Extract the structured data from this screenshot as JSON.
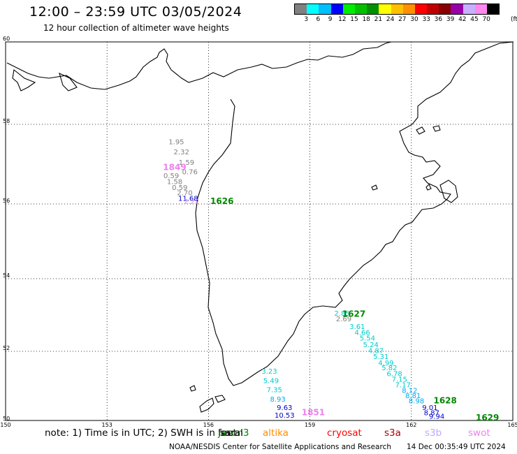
{
  "header": {
    "title": "12:00 – 23:59 UTC 03/05/2024",
    "subtitle": "12 hour collection of altimeter wave heights"
  },
  "legend": {
    "colors": [
      "#808080",
      "#00ffff",
      "#00bfff",
      "#0000ff",
      "#00ee00",
      "#00c000",
      "#009000",
      "#ffff00",
      "#ffc000",
      "#ff9000",
      "#ff0000",
      "#c00000",
      "#880000",
      "#9900aa",
      "#c8b0ff",
      "#ff88ee",
      "#000000"
    ],
    "labels": [
      "3",
      "6",
      "9",
      "12",
      "15",
      "18",
      "21",
      "24",
      "27",
      "30",
      "33",
      "36",
      "39",
      "42",
      "45",
      "70"
    ],
    "unit": "(ft)"
  },
  "map": {
    "lat_range": [
      50,
      60
    ],
    "lon_range": [
      150,
      165
    ],
    "lat_labels": [
      "60",
      "58",
      "56",
      "54",
      "52",
      "50"
    ],
    "lon_labels": [
      "150",
      "153",
      "156",
      "159",
      "162",
      "165"
    ]
  },
  "tracks": [
    {
      "name": "jason3",
      "time_label": "1849",
      "color": "#ee80ee",
      "time_lat": 56.85,
      "time_lon": 155.0,
      "points": [
        {
          "lat": 57.5,
          "lon": 155.05,
          "value": "1.95",
          "color": "#808080"
        },
        {
          "lat": 57.25,
          "lon": 155.2,
          "value": "2.32",
          "color": "#808080"
        },
        {
          "lat": 56.98,
          "lon": 155.35,
          "value": "1.59",
          "color": "#808080"
        },
        {
          "lat": 56.75,
          "lon": 155.45,
          "value": "0.76",
          "color": "#808080"
        },
        {
          "lat": 56.65,
          "lon": 154.9,
          "value": "0.59",
          "color": "#808080"
        },
        {
          "lat": 56.5,
          "lon": 155.0,
          "value": "1.58",
          "color": "#808080"
        },
        {
          "lat": 56.35,
          "lon": 155.15,
          "value": "0.59",
          "color": "#808080"
        },
        {
          "lat": 56.22,
          "lon": 155.3,
          "value": "2.70",
          "color": "#808080"
        },
        {
          "lat": 56.08,
          "lon": 155.4,
          "value": "11.68",
          "color": "#0000cc"
        },
        {
          "lat": 56.0,
          "lon": 155.5,
          "value": "2.22",
          "color": "#ee80ee"
        }
      ]
    },
    {
      "name": "saral",
      "time_label": "1626",
      "color": "#008800",
      "time_lat": 56.0,
      "time_lon": 156.4,
      "points": []
    },
    {
      "name": "sentinel3b",
      "time_label": "1627",
      "color": "#008800",
      "time_lat": 52.95,
      "time_lon": 160.3,
      "points": [
        {
          "lat": 52.98,
          "lon": 159.95,
          "value": "2.85",
          "color": "#00cccc"
        },
        {
          "lat": 52.83,
          "lon": 160.0,
          "value": "2.69",
          "color": "#808080"
        },
        {
          "lat": 52.62,
          "lon": 160.4,
          "value": "3.61",
          "color": "#00cccc"
        },
        {
          "lat": 52.45,
          "lon": 160.55,
          "value": "4.66",
          "color": "#00cccc"
        },
        {
          "lat": 52.3,
          "lon": 160.7,
          "value": "5.54",
          "color": "#00cccc"
        },
        {
          "lat": 52.12,
          "lon": 160.8,
          "value": "5.24",
          "color": "#00cccc"
        },
        {
          "lat": 51.95,
          "lon": 160.95,
          "value": "4.87",
          "color": "#00cccc"
        },
        {
          "lat": 51.78,
          "lon": 161.1,
          "value": "5.31",
          "color": "#00cccc"
        },
        {
          "lat": 51.6,
          "lon": 161.25,
          "value": "4.99",
          "color": "#00cccc"
        },
        {
          "lat": 51.45,
          "lon": 161.35,
          "value": "5.82",
          "color": "#00cccc"
        },
        {
          "lat": 51.28,
          "lon": 161.5,
          "value": "6.78",
          "color": "#00cccc"
        },
        {
          "lat": 51.12,
          "lon": 161.65,
          "value": "7.15",
          "color": "#00cccc"
        },
        {
          "lat": 50.96,
          "lon": 161.75,
          "value": "7.17",
          "color": "#00cccc"
        },
        {
          "lat": 50.8,
          "lon": 161.95,
          "value": "8.12",
          "color": "#00aaee"
        },
        {
          "lat": 50.65,
          "lon": 162.05,
          "value": "8.81",
          "color": "#00aaee"
        },
        {
          "lat": 50.5,
          "lon": 162.15,
          "value": "8.98",
          "color": "#00aaee"
        },
        {
          "lat": 50.3,
          "lon": 162.55,
          "value": "9.01",
          "color": "#0000cc"
        },
        {
          "lat": 50.15,
          "lon": 162.6,
          "value": "8.87",
          "color": "#0000cc"
        },
        {
          "lat": 50.05,
          "lon": 162.75,
          "value": "9.94",
          "color": "#0000cc"
        }
      ]
    },
    {
      "name": "cryosat2",
      "time_label": "1628",
      "color": "#008800",
      "time_lat": 50.5,
      "time_lon": 163.0,
      "points": []
    },
    {
      "name": "cryosat2b",
      "time_label": "1629",
      "color": "#008800",
      "time_lat": 50.0,
      "time_lon": 164.25,
      "points": []
    },
    {
      "name": "sentinel6",
      "time_label": "1851",
      "color": "#ee80ee",
      "time_lat": 50.15,
      "time_lon": 159.1,
      "points": [
        {
          "lat": 51.35,
          "lon": 157.8,
          "value": "3.23",
          "color": "#00cccc"
        },
        {
          "lat": 51.08,
          "lon": 157.85,
          "value": "5.49",
          "color": "#00cccc"
        },
        {
          "lat": 50.82,
          "lon": 157.95,
          "value": "7.35",
          "color": "#00cccc"
        },
        {
          "lat": 50.55,
          "lon": 158.05,
          "value": "8.93",
          "color": "#00aaee"
        },
        {
          "lat": 50.3,
          "lon": 158.25,
          "value": "9.63",
          "color": "#0000cc"
        },
        {
          "lat": 50.08,
          "lon": 158.25,
          "value": "10.53",
          "color": "#0000cc"
        }
      ]
    }
  ],
  "note": {
    "text": "note:  1) Time is in UTC; 2) SWH is in feet",
    "satellites": [
      {
        "label": "jason3",
        "color": "#008800"
      },
      {
        "label": "saral",
        "color": "#000000"
      },
      {
        "label": "altika",
        "color": "#ff8c00"
      },
      {
        "label": "cryosat",
        "color": "#ff0000"
      },
      {
        "label": "s3a",
        "color": "#aa0000"
      },
      {
        "label": "s3b",
        "color": "#c0a8ff"
      },
      {
        "label": "swot",
        "color": "#ee80ee"
      }
    ]
  },
  "footer": {
    "credit": "NOAA/NESDIS Center for Satellite Applications and Research",
    "timestamp": "14 Dec 00:35:49 UTC 2024"
  }
}
